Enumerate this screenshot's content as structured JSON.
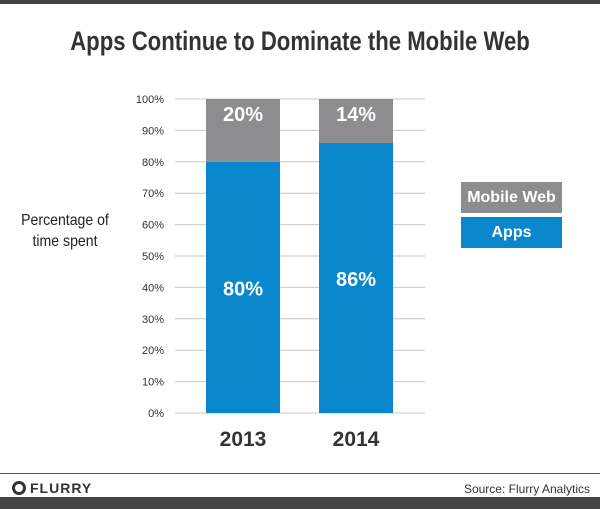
{
  "chart_data": {
    "type": "bar",
    "stacked": true,
    "title": "Apps Continue to Dominate the Mobile Web",
    "ylabel": "Percentage of time spent",
    "xlabel": "",
    "categories": [
      "2013",
      "2014"
    ],
    "series": [
      {
        "name": "Apps",
        "values": [
          80,
          86
        ],
        "labels": [
          "80%",
          "86%"
        ],
        "color": "#0a86cc"
      },
      {
        "name": "Mobile Web",
        "values": [
          20,
          14
        ],
        "labels": [
          "20%",
          "14%"
        ],
        "color": "#8d8d8f"
      }
    ],
    "ylim": [
      0,
      100
    ],
    "yticks": [
      "0%",
      "10%",
      "20%",
      "30%",
      "40%",
      "50%",
      "60%",
      "70%",
      "80%",
      "90%",
      "100%"
    ],
    "grid": true,
    "legend": "right"
  },
  "footer": {
    "logo": "FLURRY",
    "source": "Source: Flurry Analytics"
  }
}
